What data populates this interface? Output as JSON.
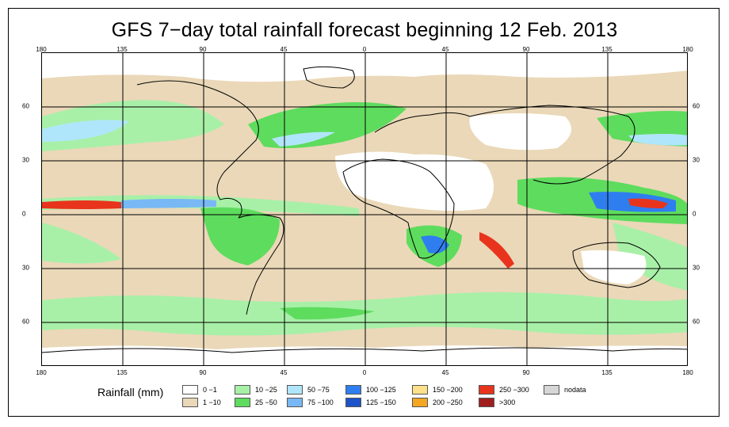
{
  "title": "GFS 7−day total rainfall forecast beginning 12 Feb. 2013",
  "axes": {
    "lon_labels": [
      "180",
      "135",
      "90",
      "45",
      "0",
      "45",
      "90",
      "135",
      "180"
    ],
    "lat_labels": [
      "60",
      "30",
      "0",
      "30",
      "60"
    ]
  },
  "legend": {
    "title": "Rainfall (mm)",
    "items": [
      {
        "label": "0 −1",
        "color": "#ffffff"
      },
      {
        "label": "1 −10",
        "color": "#ead8b8"
      },
      {
        "label": "10 −25",
        "color": "#a8f0a8"
      },
      {
        "label": "25 −50",
        "color": "#5edc5e"
      },
      {
        "label": "50 −75",
        "color": "#b0e6fb"
      },
      {
        "label": "75 −100",
        "color": "#78b8f5"
      },
      {
        "label": "100 −125",
        "color": "#2f7ef0"
      },
      {
        "label": "125 −150",
        "color": "#1e52c8"
      },
      {
        "label": "150 −200",
        "color": "#fde08a"
      },
      {
        "label": "200 −250",
        "color": "#f5a623"
      },
      {
        "label": "250 −300",
        "color": "#e8341c"
      },
      {
        "label": ">300",
        "color": "#a01e1e"
      },
      {
        "label": "nodata",
        "color": "#d6d6d6"
      }
    ]
  },
  "colors": {
    "dry": "#ead8b8",
    "light": "#a8f0a8",
    "moderate": "#5edc5e",
    "heavy": "#78b8f5",
    "extreme": "#e8341c",
    "land_outline": "#000000"
  }
}
